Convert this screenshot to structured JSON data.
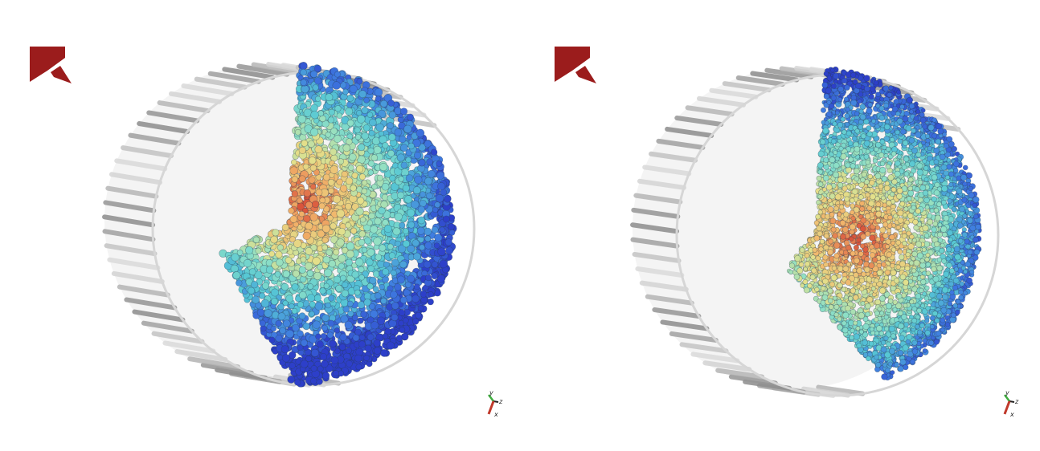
{
  "panels": [
    {
      "name": "left-simulation",
      "fill_profile": "wide",
      "axis_labels": {
        "y": "y",
        "z": "z",
        "x": "x"
      }
    },
    {
      "name": "right-simulation",
      "fill_profile": "narrow",
      "axis_labels": {
        "y": "y",
        "z": "z",
        "x": "x"
      }
    }
  ],
  "colors": {
    "logo": "#9b1c1c",
    "drum_rib": "#cfcfcf",
    "drum_shade": "#9a9a9a",
    "colormap": [
      "#2d3fc9",
      "#3f7be0",
      "#57c8d4",
      "#8fe0c6",
      "#e3e08b",
      "#f2b56b",
      "#d9543b"
    ],
    "axis_y": "#3fae3f",
    "axis_x": "#c0392b",
    "axis_z": "#222222"
  },
  "icons": [
    "brand-logo-icon",
    "axis-triad-icon"
  ]
}
